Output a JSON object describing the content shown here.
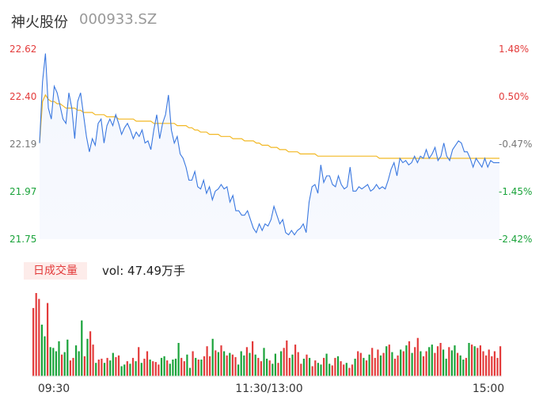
{
  "header": {
    "name": "神火股份",
    "code": "000933.SZ"
  },
  "volume_info": {
    "badge": "日成交量",
    "text": "vol: 47.49万手"
  },
  "colors": {
    "price": "#3a78e0",
    "avg": "#f2b824",
    "up": "#e33b3b",
    "down": "#1aa33a",
    "neutral": "#777777"
  },
  "chart_data": [
    {
      "type": "line",
      "title": "",
      "price_ylim": [
        21.75,
        22.62
      ],
      "pct_ylim": [
        -2.42,
        1.48
      ],
      "price_ticks": [
        "22.62",
        "22.40",
        "22.19",
        "21.97",
        "21.75"
      ],
      "pct_ticks": [
        "1.48%",
        "0.50%",
        "-0.47%",
        "-1.45%",
        "-2.42%"
      ],
      "x_ticks": [
        "09:30",
        "11:30/13:00",
        "15:00"
      ],
      "grid": false,
      "series": [
        {
          "key": "price",
          "values": [
            22.19,
            22.47,
            22.6,
            22.35,
            22.3,
            22.45,
            22.42,
            22.36,
            22.3,
            22.28,
            22.42,
            22.35,
            22.21,
            22.38,
            22.42,
            22.32,
            22.22,
            22.15,
            22.21,
            22.18,
            22.28,
            22.3,
            22.19,
            22.27,
            22.3,
            22.27,
            22.32,
            22.28,
            22.23,
            22.26,
            22.28,
            22.25,
            22.21,
            22.24,
            22.22,
            22.25,
            22.19,
            22.2,
            22.16,
            22.25,
            22.32,
            22.21,
            22.28,
            22.32,
            22.41,
            22.25,
            22.19,
            22.22,
            22.14,
            22.12,
            22.08,
            22.02,
            22.02,
            22.06,
            21.99,
            21.98,
            22.02,
            21.96,
            21.99,
            21.93,
            21.97,
            21.98,
            22.0,
            21.98,
            21.99,
            21.92,
            21.95,
            21.88,
            21.88,
            21.86,
            21.86,
            21.88,
            21.84,
            21.8,
            21.78,
            21.82,
            21.79,
            21.82,
            21.81,
            21.84,
            21.9,
            21.86,
            21.82,
            21.84,
            21.78,
            21.77,
            21.79,
            21.77,
            21.79,
            21.8,
            21.82,
            21.78,
            21.92,
            21.99,
            22.0,
            21.96,
            22.09,
            22.01,
            22.04,
            22.04,
            22.0,
            21.99,
            22.04,
            22.0,
            21.98,
            21.99,
            22.08,
            21.97,
            21.97,
            21.99,
            21.98,
            21.99,
            22.0,
            21.97,
            21.98,
            22.0,
            21.98,
            21.99,
            21.98,
            22.02,
            22.07,
            22.1,
            22.04,
            22.12,
            22.1,
            22.11,
            22.09,
            22.1,
            22.13,
            22.1,
            22.13,
            22.12,
            22.16,
            22.12,
            22.14,
            22.17,
            22.11,
            22.13,
            22.19,
            22.13,
            22.11,
            22.16,
            22.18,
            22.2,
            22.19,
            22.15,
            22.15,
            22.12,
            22.08,
            22.12,
            22.1,
            22.08,
            22.12,
            22.08,
            22.11,
            22.1,
            22.1,
            22.1
          ]
        },
        {
          "key": "avg",
          "values": [
            22.19,
            22.38,
            22.41,
            22.39,
            22.38,
            22.38,
            22.37,
            22.37,
            22.36,
            22.35,
            22.35,
            22.35,
            22.35,
            22.34,
            22.34,
            22.33,
            22.33,
            22.33,
            22.33,
            22.32,
            22.32,
            22.32,
            22.32,
            22.31,
            22.31,
            22.31,
            22.31,
            22.3,
            22.3,
            22.3,
            22.3,
            22.3,
            22.3,
            22.29,
            22.29,
            22.29,
            22.29,
            22.29,
            22.29,
            22.28,
            22.28,
            22.28,
            22.28,
            22.28,
            22.28,
            22.28,
            22.28,
            22.27,
            22.27,
            22.27,
            22.27,
            22.26,
            22.26,
            22.25,
            22.25,
            22.24,
            22.24,
            22.24,
            22.23,
            22.23,
            22.23,
            22.23,
            22.22,
            22.22,
            22.22,
            22.22,
            22.21,
            22.21,
            22.21,
            22.21,
            22.2,
            22.2,
            22.2,
            22.2,
            22.19,
            22.19,
            22.18,
            22.18,
            22.18,
            22.17,
            22.17,
            22.17,
            22.16,
            22.16,
            22.16,
            22.15,
            22.15,
            22.15,
            22.15,
            22.14,
            22.14,
            22.14,
            22.14,
            22.14,
            22.14,
            22.13,
            22.13,
            22.13,
            22.13,
            22.13,
            22.13,
            22.13,
            22.13,
            22.13,
            22.13,
            22.13,
            22.13,
            22.13,
            22.13,
            22.13,
            22.13,
            22.13,
            22.13,
            22.13,
            22.13,
            22.13,
            22.12,
            22.12,
            22.12,
            22.12,
            22.12,
            22.12,
            22.12,
            22.12,
            22.12,
            22.12,
            22.12,
            22.12,
            22.12,
            22.12,
            22.12,
            22.12,
            22.12,
            22.12,
            22.12,
            22.12,
            22.12,
            22.12,
            22.12,
            22.12,
            22.12,
            22.12,
            22.12,
            22.12,
            22.12,
            22.12,
            22.12,
            22.12,
            22.12,
            22.12,
            22.12,
            22.12,
            22.12,
            22.12,
            22.12,
            22.12,
            22.12,
            22.12
          ]
        }
      ]
    },
    {
      "type": "bar",
      "title": "",
      "ylim": [
        0,
        100
      ],
      "series": [
        {
          "key": "volume",
          "values": [
            82,
            100,
            93,
            62,
            48,
            88,
            35,
            34,
            30,
            42,
            26,
            29,
            44,
            19,
            22,
            37,
            30,
            67,
            24,
            45,
            54,
            38,
            16,
            20,
            21,
            16,
            22,
            19,
            28,
            23,
            25,
            12,
            14,
            18,
            15,
            22,
            18,
            35,
            16,
            21,
            30,
            20,
            18,
            17,
            14,
            22,
            24,
            19,
            15,
            20,
            21,
            40,
            22,
            18,
            26,
            10,
            30,
            22,
            20,
            20,
            24,
            36,
            24,
            45,
            31,
            29,
            37,
            30,
            25,
            28,
            26,
            23,
            14,
            30,
            25,
            35,
            28,
            42,
            26,
            22,
            18,
            34,
            21,
            19,
            15,
            27,
            16,
            30,
            34,
            43,
            22,
            26,
            38,
            29,
            15,
            21,
            26,
            22,
            12,
            19,
            16,
            14,
            22,
            27,
            15,
            13,
            22,
            24,
            18,
            14,
            16,
            10,
            14,
            21,
            30,
            28,
            22,
            19,
            26,
            34,
            22,
            32,
            25,
            28,
            36,
            38,
            29,
            21,
            25,
            32,
            30,
            37,
            42,
            28,
            35,
            46,
            30,
            24,
            30,
            35,
            38,
            28,
            36,
            40,
            32,
            21,
            35,
            31,
            37,
            28,
            25,
            20,
            22,
            40,
            38,
            36,
            34,
            37,
            30,
            25,
            32,
            24,
            30,
            22,
            36
          ]
        }
      ]
    }
  ]
}
